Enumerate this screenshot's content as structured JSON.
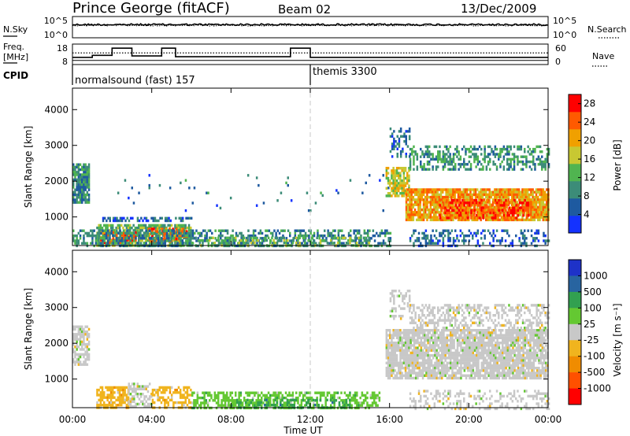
{
  "header": {
    "station": "Prince George (fitACF)",
    "beam": "Beam 02",
    "date": "13/Dec/2009"
  },
  "sky_panel": {
    "left_label": "N.Sky",
    "right_label": "N.Search",
    "left_ticks": [
      "10^5",
      "10^0"
    ],
    "right_ticks": [
      "10^5",
      "10^0"
    ],
    "sky_level": 0.62,
    "search_level": 0.58
  },
  "freq_panel": {
    "left_label_1": "Freq.",
    "left_label_2": "[MHz]",
    "right_label": "Nave",
    "left_ticks": [
      "18",
      "8"
    ],
    "right_ticks": [
      "60",
      "0"
    ],
    "freq_steps": [
      {
        "t0": 0.0,
        "t1": 1.0,
        "mhz": 11.5
      },
      {
        "t0": 1.0,
        "t1": 2.0,
        "mhz": 12.5
      },
      {
        "t0": 2.0,
        "t1": 3.0,
        "mhz": 16.0
      },
      {
        "t0": 3.0,
        "t1": 4.5,
        "mhz": 12.2
      },
      {
        "t0": 4.5,
        "t1": 5.2,
        "mhz": 16.0
      },
      {
        "t0": 5.2,
        "t1": 11.0,
        "mhz": 11.8
      },
      {
        "t0": 11.0,
        "t1": 12.0,
        "mhz": 16.0
      },
      {
        "t0": 12.0,
        "t1": 24.0,
        "mhz": 11.5
      }
    ],
    "nave_dotted": 34,
    "nave_solid": 12
  },
  "cpid_panel": {
    "label": "CPID",
    "segments": [
      {
        "name": "normalsound (fast) 157",
        "start_hour": 0
      },
      {
        "name": "themis 3300",
        "start_hour": 12
      }
    ]
  },
  "x_axis": {
    "ticks": [
      "00:00",
      "04:00",
      "08:00",
      "12:00",
      "16:00",
      "20:00",
      "00:00"
    ],
    "label": "Time UT",
    "range_hours": [
      0,
      24
    ],
    "marker_hour": 12
  },
  "chart_data": [
    {
      "type": "heatmap",
      "name": "power",
      "ylabel": "Slant Range [km]",
      "yticks": [
        "1000",
        "2000",
        "3000",
        "4000"
      ],
      "ylim": [
        200,
        4600
      ],
      "colorbar_label": "Power [dB]",
      "colorbar_ticks": [
        "4",
        "8",
        "12",
        "16",
        "20",
        "24",
        "28"
      ],
      "colorbar_range": [
        0,
        30
      ],
      "colors": [
        "#1432ff",
        "#1e5aa0",
        "#3c8c78",
        "#50b450",
        "#c8c832",
        "#f0a000",
        "#ff5a00",
        "#ff0000"
      ],
      "regions": [
        {
          "t0": 0.0,
          "t1": 0.8,
          "r0": 1400,
          "r1": 2500,
          "level": 10,
          "density": 0.85
        },
        {
          "t0": 1.2,
          "t1": 6.0,
          "r0": 200,
          "r1": 800,
          "level": 13,
          "density": 0.75
        },
        {
          "t0": 1.4,
          "t1": 3.2,
          "r0": 250,
          "r1": 600,
          "level": 26,
          "density": 0.55
        },
        {
          "t0": 3.8,
          "t1": 5.8,
          "r0": 300,
          "r1": 700,
          "level": 25,
          "density": 0.5
        },
        {
          "t0": 1.5,
          "t1": 6.0,
          "r0": 900,
          "r1": 1000,
          "level": 6,
          "density": 0.6
        },
        {
          "t0": 0.0,
          "t1": 16.0,
          "r0": 200,
          "r1": 650,
          "level": 9,
          "density": 0.5
        },
        {
          "t0": 6.0,
          "t1": 15.0,
          "r0": 200,
          "r1": 450,
          "level": 14,
          "density": 0.4
        },
        {
          "t0": 2.0,
          "t1": 16.0,
          "r0": 1200,
          "r1": 2200,
          "level": 8,
          "density": 0.02
        },
        {
          "t0": 15.8,
          "t1": 17.0,
          "r0": 1600,
          "r1": 2400,
          "level": 18,
          "density": 0.75
        },
        {
          "t0": 16.8,
          "t1": 24.0,
          "r0": 900,
          "r1": 1800,
          "level": 22,
          "density": 0.88
        },
        {
          "t0": 18.5,
          "t1": 23.0,
          "r0": 1000,
          "r1": 1500,
          "level": 27,
          "density": 0.55
        },
        {
          "t0": 17.0,
          "t1": 24.0,
          "r0": 2300,
          "r1": 3000,
          "level": 11,
          "density": 0.45
        },
        {
          "t0": 16.0,
          "t1": 17.0,
          "r0": 2700,
          "r1": 3500,
          "level": 7,
          "density": 0.35
        },
        {
          "t0": 17.0,
          "t1": 24.0,
          "r0": 200,
          "r1": 650,
          "level": 7,
          "density": 0.35
        }
      ]
    },
    {
      "type": "heatmap",
      "name": "velocity",
      "ylabel": "Slant Range [km]",
      "yticks": [
        "1000",
        "2000",
        "3000",
        "4000"
      ],
      "ylim": [
        200,
        4600
      ],
      "colorbar_label": "Velocity [m s⁻¹]",
      "colorbar_ticks": [
        "1000",
        "500",
        "100",
        "25",
        "-25",
        "-100",
        "-500",
        "-1000"
      ],
      "colors": [
        "#1e32c8",
        "#2864a0",
        "#32a050",
        "#64c832",
        "#c8c8c8",
        "#f0b41e",
        "#f08c00",
        "#ff5000",
        "#ff0000"
      ],
      "regions": [
        {
          "t0": 0.0,
          "t1": 0.8,
          "r0": 1400,
          "r1": 2500,
          "cls": 4,
          "density": 0.7
        },
        {
          "t0": 1.2,
          "t1": 2.8,
          "r0": 200,
          "r1": 800,
          "cls": 5,
          "density": 0.7
        },
        {
          "t0": 2.8,
          "t1": 4.0,
          "r0": 200,
          "r1": 900,
          "cls": 4,
          "density": 0.55
        },
        {
          "t0": 4.0,
          "t1": 6.0,
          "r0": 200,
          "r1": 800,
          "cls": 5,
          "density": 0.55
        },
        {
          "t0": 6.0,
          "t1": 15.5,
          "r0": 200,
          "r1": 650,
          "cls": 3,
          "density": 0.55
        },
        {
          "t0": 8.0,
          "t1": 14.0,
          "r0": 200,
          "r1": 450,
          "cls": 2,
          "density": 0.35
        },
        {
          "t0": 15.8,
          "t1": 24.0,
          "r0": 1000,
          "r1": 2400,
          "cls": 4,
          "density": 0.85
        },
        {
          "t0": 17.0,
          "t1": 24.0,
          "r0": 2400,
          "r1": 3100,
          "cls": 4,
          "density": 0.45
        },
        {
          "t0": 16.0,
          "t1": 17.0,
          "r0": 2700,
          "r1": 3500,
          "cls": 4,
          "density": 0.35
        },
        {
          "t0": 17.0,
          "t1": 24.0,
          "r0": 200,
          "r1": 700,
          "cls": 4,
          "density": 0.3
        }
      ]
    }
  ]
}
